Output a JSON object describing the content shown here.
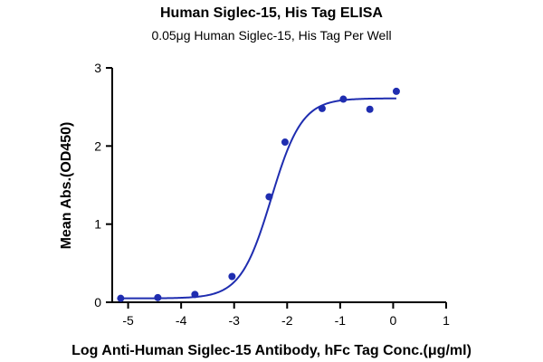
{
  "chart_data": {
    "type": "scatter",
    "title": "Human Siglec-15, His Tag ELISA",
    "subtitle": "0.05μg Human Siglec-15, His Tag Per Well",
    "xlabel": "Log Anti-Human Siglec-15 Antibody, hFc Tag Conc.(μg/ml)",
    "ylabel": "Mean Abs.(OD450)",
    "xlim": [
      -5.3,
      1
    ],
    "ylim": [
      0,
      3
    ],
    "x_ticks": [
      -5,
      -4,
      -3,
      -2,
      -1,
      0,
      1
    ],
    "x_tick_labels": [
      "-5",
      "-4",
      "-3",
      "-2",
      "-1",
      "0",
      "1"
    ],
    "y_ticks": [
      0,
      1,
      2,
      3
    ],
    "y_tick_labels": [
      "0",
      "1",
      "2",
      "3"
    ],
    "grid": false,
    "series": [
      {
        "color": "#1f2db0",
        "points": [
          {
            "x": -5.14,
            "y": 0.05
          },
          {
            "x": -4.44,
            "y": 0.06
          },
          {
            "x": -3.74,
            "y": 0.1
          },
          {
            "x": -3.04,
            "y": 0.33
          },
          {
            "x": -2.34,
            "y": 1.35
          },
          {
            "x": -2.04,
            "y": 2.05
          },
          {
            "x": -1.34,
            "y": 2.48
          },
          {
            "x": -0.94,
            "y": 2.6
          },
          {
            "x": -0.44,
            "y": 2.47
          },
          {
            "x": 0.06,
            "y": 2.7
          }
        ],
        "fit": {
          "model": "4PL",
          "bottom": 0.05,
          "top": 2.61,
          "log_ec50": -2.3,
          "hill": 1.5
        }
      }
    ]
  }
}
